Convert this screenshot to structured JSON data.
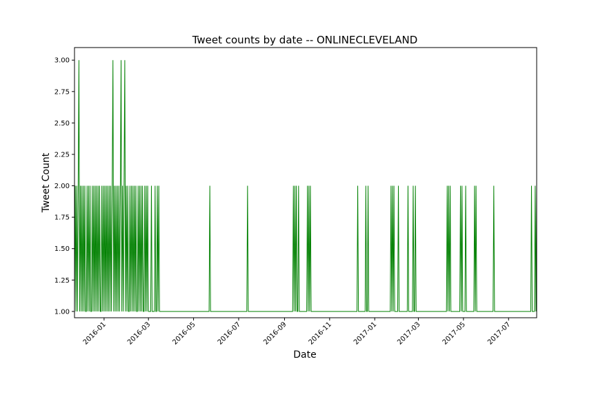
{
  "chart_data": {
    "type": "line",
    "title": "Tweet counts by date -- ONLINECLEVELAND",
    "xlabel": "Date",
    "ylabel": "Tweet Count",
    "line_color": "#008000",
    "grid": false,
    "legend": "none",
    "xlim": [
      "2015-11-22",
      "2017-08-08"
    ],
    "ylim": [
      0.95,
      3.1
    ],
    "x_ticks": [
      "2016-01",
      "2016-03",
      "2016-05",
      "2016-07",
      "2016-09",
      "2016-11",
      "2017-01",
      "2017-03",
      "2017-05",
      "2017-07"
    ],
    "y_ticks": [
      "1.00",
      "1.25",
      "1.50",
      "1.75",
      "2.00",
      "2.25",
      "2.50",
      "2.75",
      "3.00"
    ],
    "series": [
      {
        "x": [
          "2015-11-22",
          "2015-11-23",
          "2015-11-24",
          "2015-11-25",
          "2015-11-26",
          "2015-11-27",
          "2015-11-28",
          "2015-11-29",
          "2015-11-30",
          "2015-12-01",
          "2015-12-02",
          "2015-12-03",
          "2015-12-04",
          "2015-12-05",
          "2015-12-06",
          "2015-12-07",
          "2015-12-08",
          "2015-12-09",
          "2015-12-10",
          "2015-12-11",
          "2015-12-12",
          "2015-12-13",
          "2015-12-14",
          "2015-12-15",
          "2015-12-16",
          "2015-12-17",
          "2015-12-18",
          "2015-12-19",
          "2015-12-20",
          "2015-12-21",
          "2015-12-22",
          "2015-12-23",
          "2015-12-24",
          "2015-12-25",
          "2015-12-26",
          "2015-12-27",
          "2015-12-28",
          "2015-12-29",
          "2015-12-30",
          "2015-12-31",
          "2016-01-01",
          "2016-01-02",
          "2016-01-03",
          "2016-01-04",
          "2016-01-05",
          "2016-01-06",
          "2016-01-07",
          "2016-01-08",
          "2016-01-09",
          "2016-01-10",
          "2016-01-11",
          "2016-01-12",
          "2016-01-13",
          "2016-01-14",
          "2016-01-15",
          "2016-01-16",
          "2016-01-17",
          "2016-01-18",
          "2016-01-19",
          "2016-01-20",
          "2016-01-21",
          "2016-01-22",
          "2016-01-23",
          "2016-01-24",
          "2016-01-25",
          "2016-01-26",
          "2016-01-27",
          "2016-01-28",
          "2016-01-29",
          "2016-01-30",
          "2016-01-31",
          "2016-02-01",
          "2016-02-02",
          "2016-02-03",
          "2016-02-04",
          "2016-02-05",
          "2016-02-06",
          "2016-02-07",
          "2016-02-08",
          "2016-02-09",
          "2016-02-10",
          "2016-02-11",
          "2016-02-12",
          "2016-02-13",
          "2016-02-14",
          "2016-02-15",
          "2016-02-16",
          "2016-02-17",
          "2016-02-18",
          "2016-02-19",
          "2016-02-20",
          "2016-02-21",
          "2016-02-22",
          "2016-02-23",
          "2016-02-24",
          "2016-02-25",
          "2016-02-26",
          "2016-02-27",
          "2016-02-28",
          "2016-02-29",
          "2016-03-01",
          "2016-03-02",
          "2016-03-03",
          "2016-03-04",
          "2016-03-05",
          "2016-03-06",
          "2016-03-07",
          "2016-03-08",
          "2016-03-09",
          "2016-03-10",
          "2016-03-11",
          "2016-03-12",
          "2016-03-13",
          "2016-03-14",
          "2016-03-15",
          "2016-03-16",
          "2016-05-22",
          "2016-05-23",
          "2016-05-24",
          "2016-07-12",
          "2016-07-13",
          "2016-07-14",
          "2016-09-12",
          "2016-09-13",
          "2016-09-14",
          "2016-09-15",
          "2016-09-16",
          "2016-09-17",
          "2016-09-18",
          "2016-09-19",
          "2016-09-20",
          "2016-09-21",
          "2016-10-01",
          "2016-10-02",
          "2016-10-03",
          "2016-10-04",
          "2016-10-05",
          "2016-10-06",
          "2016-10-07",
          "2016-12-08",
          "2016-12-09",
          "2016-12-10",
          "2016-12-19",
          "2016-12-20",
          "2016-12-21",
          "2016-12-22",
          "2016-12-23",
          "2016-12-24",
          "2017-01-22",
          "2017-01-23",
          "2017-01-24",
          "2017-01-25",
          "2017-01-26",
          "2017-01-27",
          "2017-01-28",
          "2017-02-01",
          "2017-02-02",
          "2017-02-03",
          "2017-02-14",
          "2017-02-15",
          "2017-02-16",
          "2017-02-21",
          "2017-02-22",
          "2017-02-23",
          "2017-02-24",
          "2017-02-25",
          "2017-02-26",
          "2017-04-08",
          "2017-04-09",
          "2017-04-10",
          "2017-04-11",
          "2017-04-12",
          "2017-04-13",
          "2017-04-14",
          "2017-04-26",
          "2017-04-27",
          "2017-04-28",
          "2017-04-29",
          "2017-04-30",
          "2017-05-03",
          "2017-05-04",
          "2017-05-05",
          "2017-05-15",
          "2017-05-16",
          "2017-05-17",
          "2017-05-18",
          "2017-05-19",
          "2017-06-10",
          "2017-06-11",
          "2017-06-12",
          "2017-07-31",
          "2017-08-01",
          "2017-08-02",
          "2017-08-05",
          "2017-08-06",
          "2017-08-07",
          "2017-08-08"
        ],
        "y": [
          1,
          2,
          1,
          2,
          1,
          2,
          3,
          1,
          2,
          1,
          2,
          1,
          2,
          1,
          2,
          1,
          1,
          2,
          1,
          2,
          1,
          2,
          1,
          1,
          2,
          1,
          2,
          1,
          2,
          1,
          2,
          1,
          2,
          1,
          2,
          1,
          1,
          2,
          1,
          2,
          1,
          2,
          1,
          2,
          1,
          2,
          1,
          2,
          1,
          2,
          1,
          2,
          3,
          1,
          2,
          1,
          2,
          1,
          2,
          1,
          2,
          1,
          2,
          3,
          1,
          2,
          1,
          2,
          3,
          1,
          2,
          1,
          2,
          1,
          1,
          2,
          1,
          2,
          1,
          2,
          1,
          2,
          1,
          2,
          1,
          1,
          2,
          1,
          2,
          1,
          2,
          1,
          2,
          1,
          1,
          2,
          1,
          2,
          1,
          2,
          1,
          1,
          1,
          1,
          2,
          1,
          1,
          1,
          1,
          2,
          1,
          1,
          2,
          1,
          2,
          1,
          1,
          2,
          1,
          1,
          2,
          1,
          1,
          2,
          1,
          2,
          1,
          2,
          1,
          1,
          2,
          1,
          1,
          2,
          1,
          2,
          1,
          2,
          1,
          1,
          2,
          1,
          1,
          2,
          1,
          1,
          2,
          1,
          1,
          2,
          1,
          2,
          1,
          2,
          1,
          1,
          2,
          1,
          1,
          2,
          1,
          1,
          2,
          1,
          1,
          2,
          1,
          1,
          2,
          1,
          2,
          1,
          2,
          1,
          1,
          2,
          1,
          2,
          1,
          1,
          2,
          1,
          1,
          2,
          1,
          2,
          1,
          1,
          2,
          1,
          1,
          2,
          1,
          1,
          2,
          1,
          2
        ]
      }
    ]
  }
}
